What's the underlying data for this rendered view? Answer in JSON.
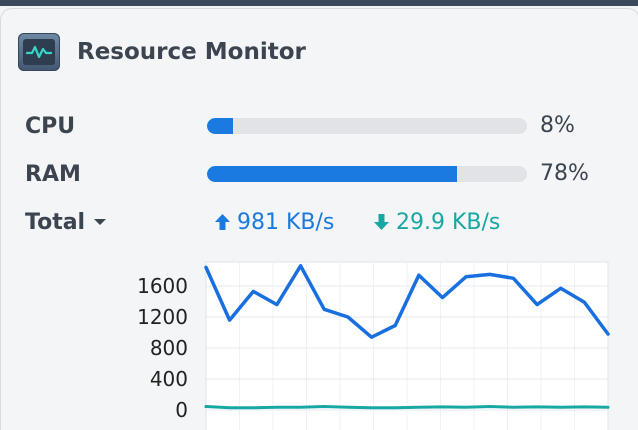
{
  "widget": {
    "title": "Resource Monitor",
    "icon": "resource-monitor-icon"
  },
  "cpu": {
    "label": "CPU",
    "percent_text": "8%",
    "value": 8
  },
  "ram": {
    "label": "RAM",
    "percent_text": "78%",
    "value": 78
  },
  "total": {
    "label": "Total",
    "upload": "981 KB/s",
    "download": "29.9 KB/s"
  },
  "colors": {
    "bar_fill": "#1a7ae0",
    "bar_track": "#e1e3e6",
    "upload": "#1a7ae0",
    "download": "#17a8a3"
  },
  "chart_data": {
    "type": "line",
    "yticks": [
      "1600",
      "1200",
      "800",
      "400",
      "0"
    ],
    "ylim": [
      0,
      1900
    ],
    "grid": true,
    "series": [
      {
        "values": [
          1840,
          1160,
          1530,
          1360,
          1860,
          1300,
          1200,
          940,
          1090,
          1740,
          1450,
          1720,
          1750,
          1700,
          1360,
          1570,
          1390,
          980
        ],
        "color": "#1a6fe0"
      },
      {
        "values": [
          45,
          30,
          30,
          35,
          35,
          45,
          35,
          30,
          30,
          35,
          40,
          35,
          45,
          35,
          40,
          35,
          40,
          35
        ],
        "color": "#17a8a3"
      }
    ]
  }
}
